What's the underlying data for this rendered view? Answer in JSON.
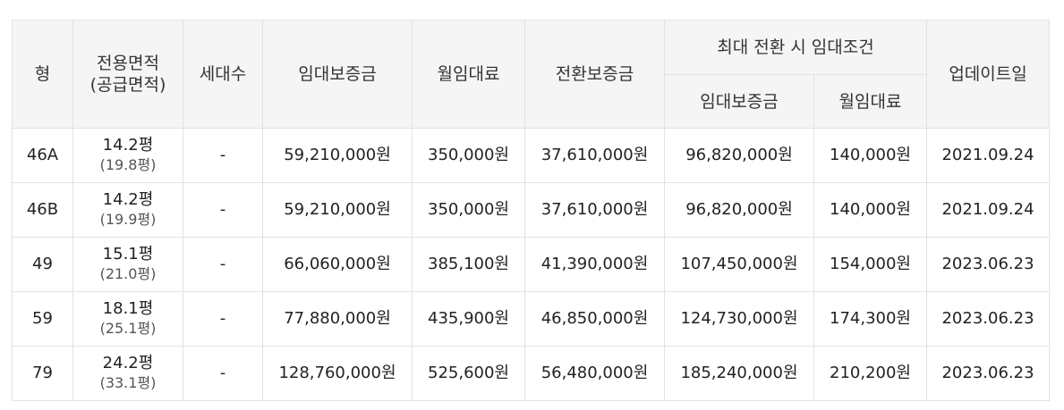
{
  "table": {
    "headers": {
      "type": "형",
      "area_line1": "전용면적",
      "area_line2": "(공급면적)",
      "households": "세대수",
      "deposit": "임대보증금",
      "monthly_rent": "월임대료",
      "conversion_deposit": "전환보증금",
      "max_conversion_group": "최대 전환 시 임대조건",
      "max_deposit": "임대보증금",
      "max_monthly_rent": "월임대료",
      "updated": "업데이트일"
    },
    "rows": [
      {
        "type": "46A",
        "exclusive_area": "14.2평",
        "supply_area": "(19.8평)",
        "households": "-",
        "deposit": "59,210,000원",
        "monthly_rent": "350,000원",
        "conversion_deposit": "37,610,000원",
        "max_deposit": "96,820,000원",
        "max_monthly_rent": "140,000원",
        "updated": "2021.09.24"
      },
      {
        "type": "46B",
        "exclusive_area": "14.2평",
        "supply_area": "(19.9평)",
        "households": "-",
        "deposit": "59,210,000원",
        "monthly_rent": "350,000원",
        "conversion_deposit": "37,610,000원",
        "max_deposit": "96,820,000원",
        "max_monthly_rent": "140,000원",
        "updated": "2021.09.24"
      },
      {
        "type": "49",
        "exclusive_area": "15.1평",
        "supply_area": "(21.0평)",
        "households": "-",
        "deposit": "66,060,000원",
        "monthly_rent": "385,100원",
        "conversion_deposit": "41,390,000원",
        "max_deposit": "107,450,000원",
        "max_monthly_rent": "154,000원",
        "updated": "2023.06.23"
      },
      {
        "type": "59",
        "exclusive_area": "18.1평",
        "supply_area": "(25.1평)",
        "households": "-",
        "deposit": "77,880,000원",
        "monthly_rent": "435,900원",
        "conversion_deposit": "46,850,000원",
        "max_deposit": "124,730,000원",
        "max_monthly_rent": "174,300원",
        "updated": "2023.06.23"
      },
      {
        "type": "79",
        "exclusive_area": "24.2평",
        "supply_area": "(33.1평)",
        "households": "-",
        "deposit": "128,760,000원",
        "monthly_rent": "525,600원",
        "conversion_deposit": "56,480,000원",
        "max_deposit": "185,240,000원",
        "max_monthly_rent": "210,200원",
        "updated": "2023.06.23"
      }
    ]
  }
}
